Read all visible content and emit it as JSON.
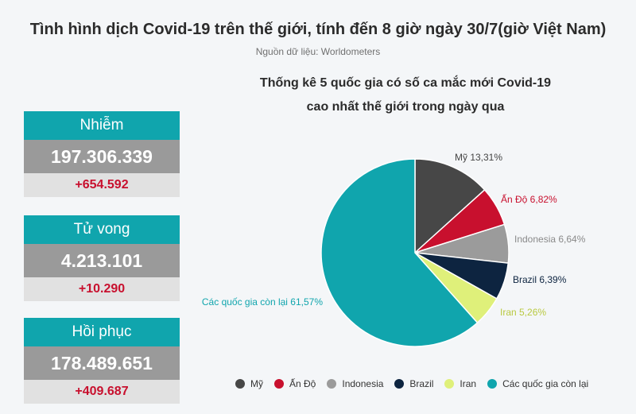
{
  "header": {
    "title": "Tình hình dịch Covid-19 trên thế giới, tính đến 8 giờ ngày 30/7(giờ Việt Nam)",
    "source": "Nguồn dữ liệu: Worldometers"
  },
  "stats": [
    {
      "label": "Nhiễm",
      "total": "197.306.339",
      "delta": "+654.592"
    },
    {
      "label": "Tử vong",
      "total": "4.213.101",
      "delta": "+10.290"
    },
    {
      "label": "Hồi phục",
      "total": "178.489.651",
      "delta": "+409.687"
    }
  ],
  "chart_data": {
    "type": "pie",
    "title": "Thống kê 5 quốc gia có số ca mắc  mới Covid-19 cao nhất thế giới trong ngày qua",
    "title_lines": [
      "Thống kê 5 quốc gia có số ca mắc  mới Covid-19",
      "cao nhất thế giới trong ngày qua"
    ],
    "unit": "%",
    "legend_position": "bottom",
    "slices": [
      {
        "name": "Mỹ",
        "value": 13.31,
        "label": "Mỹ 13,31%",
        "color": "#474747",
        "label_color": "#444444"
      },
      {
        "name": "Ấn Độ",
        "value": 6.82,
        "label": "Ấn Độ 6,82%",
        "color": "#c8102e",
        "label_color": "#c8102e"
      },
      {
        "name": "Indonesia",
        "value": 6.64,
        "label": "Indonesia 6,64%",
        "color": "#9b9b9b",
        "label_color": "#8a8a8a"
      },
      {
        "name": "Brazil",
        "value": 6.39,
        "label": "Brazil 6,39%",
        "color": "#0d2440",
        "label_color": "#0d2440"
      },
      {
        "name": "Iran",
        "value": 5.26,
        "label": "Iran 5,26%",
        "color": "#dff07a",
        "label_color": "#b9c940"
      },
      {
        "name": "Các quốc gia còn lại",
        "value": 61.57,
        "label": "Các quốc gia còn lại 61,57%",
        "color": "#10a5ad",
        "label_color": "#10a5ad"
      }
    ]
  }
}
